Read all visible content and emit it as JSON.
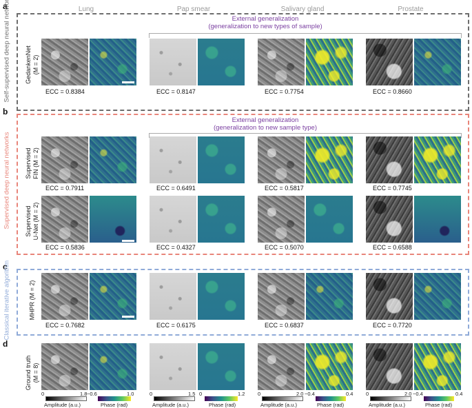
{
  "columns": [
    "Lung",
    "Pap smear",
    "Salivary gland",
    "Prostate"
  ],
  "panels": {
    "a": {
      "letter": "a",
      "group_label": "Self-supervised deep neural network",
      "external_note_line1": "External generalization",
      "external_note_line2": "(generalization to new types of sample)",
      "row_label_line1": "GedankenNet",
      "row_label_line2": "(M = 2)",
      "ecc": [
        "ECC = 0.8384",
        "ECC = 0.8147",
        "ECC = 0.7754",
        "ECC = 0.8660"
      ],
      "color": "#6d6d6d"
    },
    "b": {
      "letter": "b",
      "group_label": "Supervised deep neural networks",
      "external_note_line1": "External generalization",
      "external_note_line2": "(generalization to new sample type)",
      "rows": [
        {
          "row_label_line1": "Supervised",
          "row_label_line2": "FIN (M = 2)",
          "ecc": [
            "ECC = 0.7911",
            "ECC = 0.6491",
            "ECC = 0.5817",
            "ECC = 0.7745"
          ]
        },
        {
          "row_label_line1": "Supervised",
          "row_label_line2": "U-Net (M = 2)",
          "ecc": [
            "ECC = 0.5836",
            "ECC = 0.4327",
            "ECC = 0.5070",
            "ECC = 0.6588"
          ]
        }
      ],
      "color": "#e8857a"
    },
    "c": {
      "letter": "c",
      "group_label": "Classical iterative algorithm",
      "row_label_line1": "MHPR (M = 2)",
      "ecc": [
        "ECC = 0.7682",
        "ECC = 0.6175",
        "ECC = 0.6837",
        "ECC = 0.7720"
      ],
      "color": "#8faad8"
    },
    "d": {
      "letter": "d",
      "row_label_line1": "Ground truth",
      "row_label_line2": "(M = 8)"
    }
  },
  "colorbars": [
    {
      "amp_min": "0",
      "amp_max": "1.8",
      "amp_label": "Amplitude (a.u.)",
      "phase_min": "−0.6",
      "phase_max": "1.0",
      "phase_label": "Phase (rad)"
    },
    {
      "amp_min": "0",
      "amp_max": "1.5",
      "amp_label": "Amplitude (a.u.)",
      "phase_min": "0",
      "phase_max": "1.2",
      "phase_label": "Phase (rad)"
    },
    {
      "amp_min": "0",
      "amp_max": "2.0",
      "amp_label": "Amplitude (a.u.)",
      "phase_min": "−0.4",
      "phase_max": "0.4",
      "phase_label": "Phase (rad)"
    },
    {
      "amp_min": "0",
      "amp_max": "2.0",
      "amp_label": "Amplitude (a.u.)",
      "phase_min": "−0.4",
      "phase_max": "0.4",
      "phase_label": "Phase (rad)"
    }
  ]
}
